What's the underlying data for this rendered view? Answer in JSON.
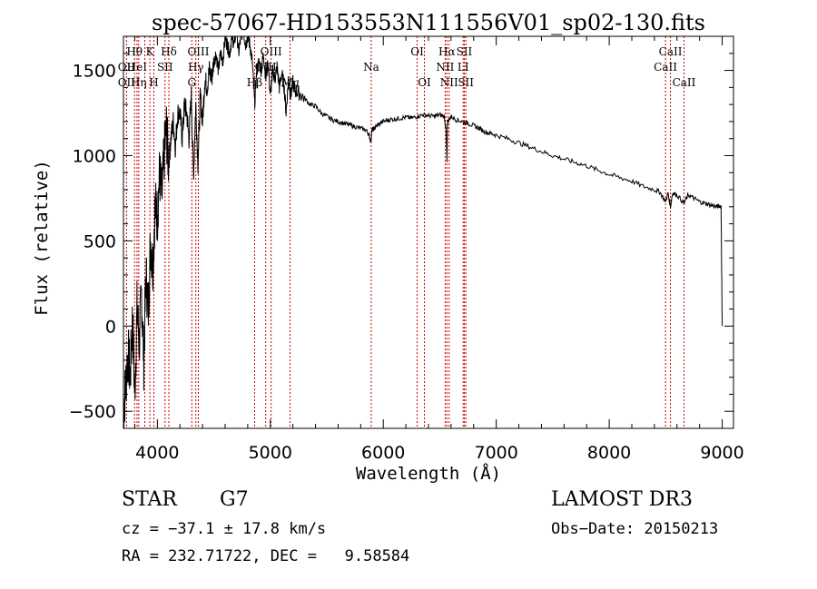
{
  "chart_data": {
    "type": "line",
    "title": "spec-57067-HD153553N111556V01_sp02-130.fits",
    "xlabel": "Wavelength (Å)",
    "ylabel": "Flux (relative)",
    "xlim": [
      3700,
      9100
    ],
    "ylim": [
      -600,
      1700
    ],
    "x_ticks": [
      4000,
      5000,
      6000,
      7000,
      8000,
      9000
    ],
    "x_tick_labels": [
      "4000",
      "5000",
      "6000",
      "7000",
      "8000",
      "9000"
    ],
    "y_ticks": [
      -500,
      0,
      500,
      1000,
      1500
    ],
    "y_tick_labels": [
      "−500",
      "0",
      "500",
      "1000",
      "1500"
    ],
    "grid": false,
    "series": [
      {
        "x": [
          3700,
          3720,
          3740,
          3760,
          3780,
          3800,
          3820,
          3840,
          3860,
          3880,
          3900,
          3920,
          3940,
          3960,
          3980,
          4000,
          4020,
          4040,
          4060,
          4080,
          4100,
          4120,
          4140,
          4160,
          4180,
          4200,
          4220,
          4240,
          4260,
          4280,
          4300,
          4320,
          4340,
          4360,
          4380,
          4400,
          4420,
          4440,
          4460,
          4480,
          4500,
          4520,
          4540,
          4560,
          4580,
          4600,
          4620,
          4640,
          4660,
          4680,
          4700,
          4720,
          4740,
          4760,
          4780,
          4800,
          4820,
          4840,
          4861,
          4880,
          4900,
          4920,
          4940,
          4960,
          4980,
          5000,
          5020,
          5040,
          5060,
          5080,
          5100,
          5120,
          5140,
          5160,
          5180,
          5200,
          5220,
          5250,
          5300,
          5350,
          5400,
          5450,
          5500,
          5550,
          5600,
          5650,
          5700,
          5750,
          5800,
          5850,
          5875,
          5890,
          5900,
          5920,
          5950,
          6000,
          6050,
          6100,
          6150,
          6200,
          6250,
          6300,
          6350,
          6400,
          6450,
          6500,
          6540,
          6555,
          6563,
          6570,
          6600,
          6650,
          6700,
          6750,
          6800,
          6850,
          6900,
          6950,
          7000,
          7100,
          7200,
          7300,
          7400,
          7500,
          7600,
          7700,
          7800,
          7900,
          8000,
          8100,
          8200,
          8300,
          8400,
          8450,
          8498,
          8520,
          8542,
          8560,
          8600,
          8662,
          8700,
          8750,
          8800,
          8850,
          8900,
          8950,
          8980,
          8990,
          9000
        ],
        "y": [
          -500,
          -350,
          -150,
          -300,
          50,
          -400,
          100,
          -100,
          200,
          -200,
          300,
          100,
          500,
          350,
          700,
          650,
          900,
          750,
          1000,
          1150,
          950,
          1100,
          1200,
          1050,
          1250,
          1250,
          1100,
          1300,
          1250,
          1100,
          1350,
          880,
          1300,
          950,
          1350,
          1200,
          1450,
          1400,
          1500,
          1450,
          1550,
          1600,
          1500,
          1600,
          1550,
          1700,
          1650,
          1600,
          1700,
          1650,
          1750,
          1600,
          1700,
          1750,
          1650,
          1700,
          1650,
          1550,
          1300,
          1500,
          1550,
          1500,
          1600,
          1450,
          1550,
          1350,
          1500,
          1450,
          1520,
          1400,
          1480,
          1420,
          1250,
          1450,
          1350,
          1430,
          1380,
          1370,
          1340,
          1300,
          1290,
          1250,
          1230,
          1210,
          1200,
          1190,
          1180,
          1170,
          1160,
          1150,
          1120,
          1080,
          1150,
          1160,
          1180,
          1200,
          1210,
          1215,
          1220,
          1225,
          1220,
          1230,
          1240,
          1235,
          1230,
          1240,
          1230,
          1150,
          970,
          1200,
          1230,
          1210,
          1200,
          1190,
          1175,
          1160,
          1140,
          1130,
          1120,
          1100,
          1075,
          1050,
          1025,
          1000,
          980,
          960,
          940,
          915,
          890,
          870,
          850,
          820,
          800,
          785,
          730,
          780,
          700,
          780,
          770,
          720,
          770,
          750,
          730,
          720,
          710,
          700,
          705,
          700,
          0
        ]
      }
    ],
    "annotations": [
      {
        "label": "H$\\theta$",
        "x": 3798,
        "row": 1
      },
      {
        "label": "OII",
        "x": 3727,
        "row": 2
      },
      {
        "label": "OII",
        "x": 3727,
        "row": 3
      },
      {
        "label": "HeI",
        "x": 3820,
        "row": 2
      },
      {
        "label": "H$\\eta$",
        "x": 3835,
        "row": 3
      },
      {
        "label": "K",
        "x": 3934,
        "row": 1
      },
      {
        "label": "SII",
        "x": 4068,
        "row": 2
      },
      {
        "label": "H",
        "x": 3969,
        "row": 3
      },
      {
        "label": "H$\\delta$",
        "x": 4102,
        "row": 1
      },
      {
        "label": "OIII",
        "x": 4363,
        "row": 1
      },
      {
        "label": "H$\\gamma$",
        "x": 4341,
        "row": 2
      },
      {
        "label": "G",
        "x": 4305,
        "row": 3
      },
      {
        "label": "OIII",
        "x": 5007,
        "row": 1
      },
      {
        "label": "OIII",
        "x": 4959,
        "row": 2
      },
      {
        "label": "H$\\beta$",
        "x": 4861,
        "row": 3
      },
      {
        "label": "Mg",
        "x": 5175,
        "row": 3
      },
      {
        "label": "Na",
        "x": 5893,
        "row": 2
      },
      {
        "label": "OI",
        "x": 6300,
        "row": 1
      },
      {
        "label": "OI",
        "x": 6364,
        "row": 3
      },
      {
        "label": "H$\\alpha$",
        "x": 6563,
        "row": 1
      },
      {
        "label": "SII",
        "x": 6717,
        "row": 1
      },
      {
        "label": "NII",
        "x": 6548,
        "row": 2
      },
      {
        "label": "NII",
        "x": 6583,
        "row": 3
      },
      {
        "label": "LI",
        "x": 6707,
        "row": 2
      },
      {
        "label": "SII",
        "x": 6731,
        "row": 3
      },
      {
        "label": "CaII",
        "x": 8542,
        "row": 1
      },
      {
        "label": "CaII",
        "x": 8498,
        "row": 2
      },
      {
        "label": "CaII",
        "x": 8662,
        "row": 3
      }
    ],
    "line_positions": [
      3727,
      3798,
      3820,
      3835,
      3889,
      3934,
      3969,
      4068,
      4102,
      4305,
      4341,
      4363,
      4861,
      4959,
      5007,
      5175,
      5893,
      6300,
      6364,
      6548,
      6563,
      6583,
      6707,
      6717,
      6731,
      8498,
      8542,
      8662
    ]
  },
  "info": {
    "object_type": "STAR",
    "subclass": "G7",
    "survey": "LAMOST DR3",
    "cz": "cz = −37.1 ± 17.8 km/s",
    "obs_date": "Obs−Date: 20150213",
    "coords": "RA = 232.71722, DEC =   9.58584"
  },
  "colors": {
    "spectrum": "#000000",
    "line_markers": "#cc0000",
    "axes": "#000000",
    "background": "#ffffff"
  }
}
